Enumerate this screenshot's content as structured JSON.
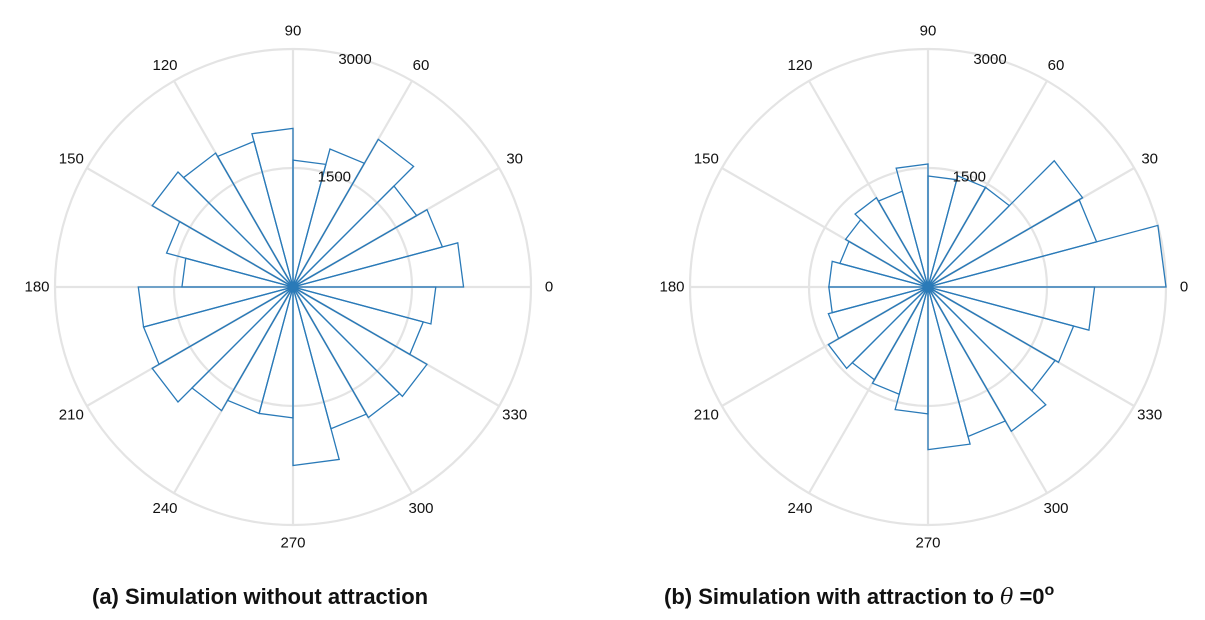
{
  "chart_data": [
    {
      "type": "polar-histogram",
      "caption": "(a) Simulation without attraction",
      "angle_ticks": [
        "0",
        "30",
        "60",
        "90",
        "120",
        "150",
        "180",
        "210",
        "240",
        "270",
        "300",
        "330"
      ],
      "radial_ticks": [
        "1500",
        "3000"
      ],
      "rmax": 3000,
      "bin_width_deg": 15,
      "bin_centers_deg": [
        7.5,
        22.5,
        37.5,
        52.5,
        67.5,
        82.5,
        97.5,
        112.5,
        127.5,
        142.5,
        157.5,
        172.5,
        187.5,
        202.5,
        217.5,
        232.5,
        247.5,
        262.5,
        277.5,
        292.5,
        307.5,
        322.5,
        337.5,
        352.5
      ],
      "values": [
        2150,
        1950,
        1800,
        2150,
        1800,
        1600,
        2000,
        1900,
        1950,
        2050,
        1650,
        1400,
        1950,
        1950,
        2050,
        1800,
        1650,
        1650,
        2250,
        1850,
        1900,
        1950,
        1700,
        1800
      ],
      "series_color": "#2a7ab8",
      "grid": true
    },
    {
      "type": "polar-histogram",
      "caption_prefix": "(b) Simulation with attraction to ",
      "caption_symbol": "θ",
      "caption_suffix": " =0",
      "caption_degree": "o",
      "angle_ticks": [
        "0",
        "30",
        "60",
        "90",
        "120",
        "150",
        "180",
        "210",
        "240",
        "270",
        "300",
        "330"
      ],
      "radial_ticks": [
        "1500",
        "3000"
      ],
      "rmax": 3000,
      "bin_width_deg": 15,
      "bin_centers_deg": [
        7.5,
        22.5,
        37.5,
        52.5,
        67.5,
        82.5,
        97.5,
        112.5,
        127.5,
        142.5,
        157.5,
        172.5,
        187.5,
        202.5,
        217.5,
        232.5,
        247.5,
        262.5,
        277.5,
        292.5,
        307.5,
        322.5,
        337.5,
        352.5
      ],
      "values": [
        3000,
        2200,
        2250,
        1450,
        1450,
        1400,
        1550,
        1250,
        1300,
        1200,
        1150,
        1250,
        1250,
        1300,
        1450,
        1350,
        1400,
        1600,
        2050,
        1950,
        2100,
        1850,
        1900,
        2100
      ],
      "series_color": "#2a7ab8",
      "grid": true
    }
  ]
}
